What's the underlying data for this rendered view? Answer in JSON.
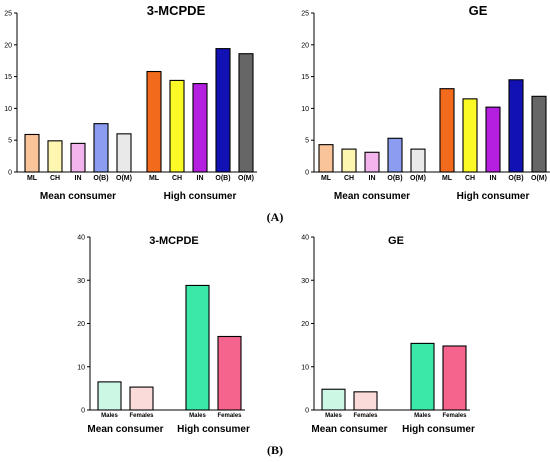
{
  "panels": {
    "A": "(A)",
    "B": "(B)"
  },
  "chart_data": [
    {
      "type": "bar",
      "title": "3-MCPDE",
      "categories": [
        "ML",
        "CH",
        "IN",
        "O(B)",
        "O(M)"
      ],
      "groups": [
        "Mean consumer",
        "High consumer"
      ],
      "series": [
        {
          "group": "Mean consumer",
          "values": [
            5.9,
            4.9,
            4.5,
            7.6,
            6.0
          ]
        },
        {
          "group": "High consumer",
          "values": [
            15.8,
            14.4,
            13.9,
            19.4,
            18.6
          ]
        }
      ],
      "colors_mean": [
        "#f9c49a",
        "#fdf6b0",
        "#f3b3ec",
        "#8c9cf0",
        "#e9e9e9"
      ],
      "colors_high": [
        "#f26a1b",
        "#fbfa26",
        "#b51fe0",
        "#1212b4",
        "#666666"
      ],
      "ylim": [
        0,
        25
      ],
      "yticks": [
        0,
        5,
        10,
        15,
        20,
        25
      ]
    },
    {
      "type": "bar",
      "title": "GE",
      "categories": [
        "ML",
        "CH",
        "IN",
        "O(B)",
        "O(M)"
      ],
      "groups": [
        "Mean consumer",
        "High consumer"
      ],
      "series": [
        {
          "group": "Mean consumer",
          "values": [
            4.3,
            3.6,
            3.1,
            5.3,
            3.6
          ]
        },
        {
          "group": "High consumer",
          "values": [
            13.1,
            11.5,
            10.2,
            14.5,
            11.9
          ]
        }
      ],
      "colors_mean": [
        "#f9c49a",
        "#fdf6b0",
        "#f3b3ec",
        "#8c9cf0",
        "#e9e9e9"
      ],
      "colors_high": [
        "#f26a1b",
        "#fbfa26",
        "#b51fe0",
        "#1212b4",
        "#666666"
      ],
      "ylim": [
        0,
        25
      ],
      "yticks": [
        0,
        5,
        10,
        15,
        20,
        25
      ]
    },
    {
      "type": "bar",
      "title": "3-MCPDE",
      "categories": [
        "Males",
        "Females"
      ],
      "groups": [
        "Mean consumer",
        "High consumer"
      ],
      "series": [
        {
          "group": "Mean consumer",
          "values": [
            6.5,
            5.3
          ]
        },
        {
          "group": "High consumer",
          "values": [
            28.8,
            17.0
          ]
        }
      ],
      "colors_mean": [
        "#cbf7e4",
        "#fbdada"
      ],
      "colors_high": [
        "#3ce8a8",
        "#f5648c"
      ],
      "ylim": [
        0,
        40
      ],
      "yticks": [
        0,
        10,
        20,
        30,
        40
      ]
    },
    {
      "type": "bar",
      "title": "GE",
      "categories": [
        "Males",
        "Females"
      ],
      "groups": [
        "Mean consumer",
        "High consumer"
      ],
      "series": [
        {
          "group": "Mean consumer",
          "values": [
            4.8,
            4.2
          ]
        },
        {
          "group": "High consumer",
          "values": [
            15.4,
            14.8
          ]
        }
      ],
      "colors_mean": [
        "#cbf7e4",
        "#fbdada"
      ],
      "colors_high": [
        "#3ce8a8",
        "#f5648c"
      ],
      "ylim": [
        0,
        40
      ],
      "yticks": [
        0,
        10,
        20,
        30,
        40
      ]
    }
  ]
}
